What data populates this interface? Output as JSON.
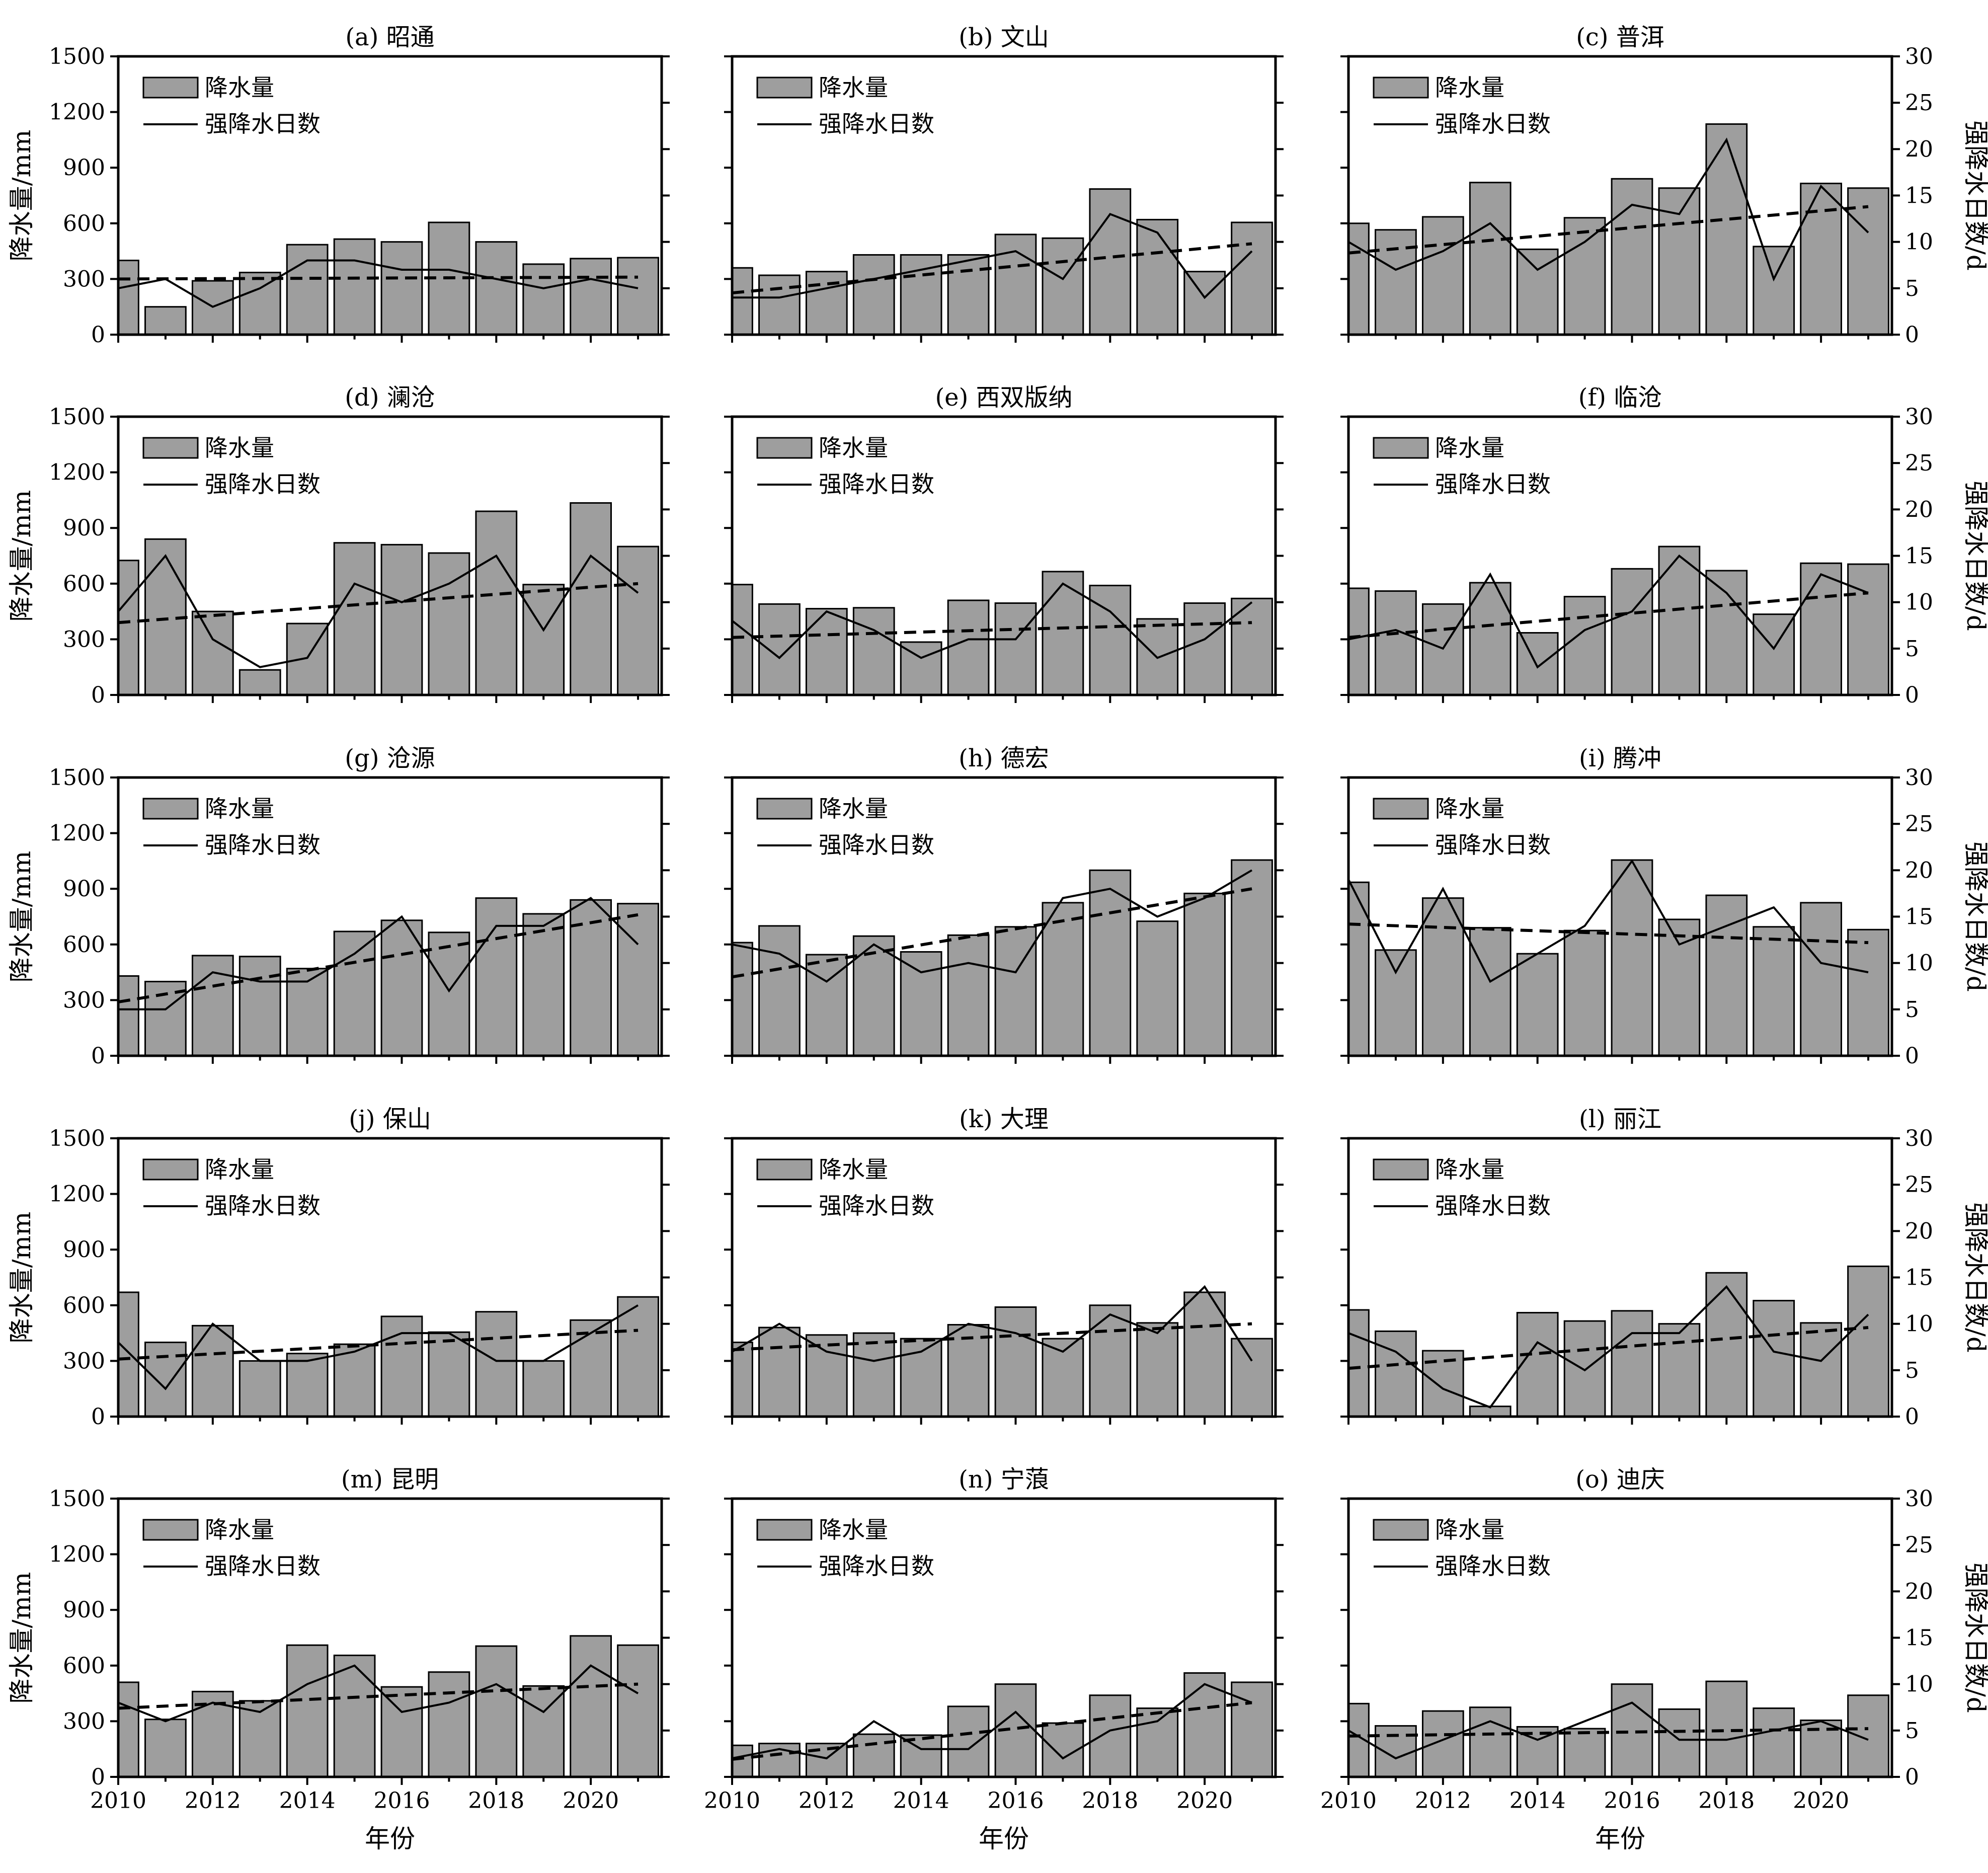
{
  "chart_data": {
    "type": "bar+line",
    "grid": false,
    "legend_position": "top-left",
    "legend": {
      "bar": "降水量",
      "line": "强降水日数"
    },
    "xlabel": "年份",
    "ylabel_left": "降水量/mm",
    "ylabel_right": "强降水日数/d",
    "years": [
      2010,
      2011,
      2012,
      2013,
      2014,
      2015,
      2016,
      2017,
      2018,
      2019,
      2020,
      2021
    ],
    "xlim": [
      2010,
      2021
    ],
    "xticks": [
      "2010",
      "2012",
      "2014",
      "2016",
      "2018",
      "2020"
    ],
    "ylim_left": [
      0,
      1500
    ],
    "yticks_left": [
      "0",
      "300",
      "600",
      "900",
      "1200",
      "1500"
    ],
    "ylim_right": [
      0,
      30
    ],
    "yticks_right": [
      "0",
      "5",
      "10",
      "15",
      "20",
      "25",
      "30"
    ],
    "panels": [
      {
        "title": "(a) 昭通",
        "precip": [
          400,
          150,
          290,
          335,
          485,
          515,
          500,
          605,
          500,
          380,
          410,
          415
        ],
        "days": [
          5,
          6,
          3,
          5,
          8,
          8,
          7,
          7,
          6,
          5,
          6,
          5
        ],
        "trend": [
          6,
          6.2
        ]
      },
      {
        "title": "(b) 文山",
        "precip": [
          360,
          320,
          340,
          430,
          430,
          430,
          540,
          520,
          785,
          620,
          340,
          605
        ],
        "days": [
          4,
          4,
          5,
          6,
          7,
          8,
          9,
          6,
          13,
          11,
          4,
          9
        ],
        "trend": [
          4.5,
          9.8
        ]
      },
      {
        "title": "(c) 普洱",
        "precip": [
          600,
          565,
          635,
          820,
          460,
          630,
          840,
          790,
          1135,
          475,
          815,
          790
        ],
        "days": [
          10,
          7,
          9,
          12,
          7,
          10,
          14,
          13,
          21,
          6,
          16,
          11
        ],
        "trend": [
          8.8,
          13.8
        ]
      },
      {
        "title": "(d) 澜沧",
        "precip": [
          725,
          840,
          450,
          135,
          385,
          820,
          810,
          765,
          990,
          595,
          1035,
          800
        ],
        "days": [
          9,
          15,
          6,
          3,
          4,
          12,
          10,
          12,
          15,
          7,
          15,
          11
        ],
        "trend": [
          7.8,
          12
        ]
      },
      {
        "title": "(e) 西双版纳",
        "precip": [
          595,
          490,
          465,
          470,
          285,
          510,
          495,
          665,
          590,
          410,
          495,
          520
        ],
        "days": [
          8,
          4,
          9,
          7,
          4,
          6,
          6,
          12,
          9,
          4,
          6,
          10
        ],
        "trend": [
          6.2,
          7.8
        ]
      },
      {
        "title": "(f) 临沧",
        "precip": [
          575,
          560,
          490,
          605,
          335,
          530,
          680,
          800,
          670,
          435,
          710,
          705
        ],
        "days": [
          6,
          7,
          5,
          13,
          3,
          7,
          9,
          15,
          11,
          5,
          13,
          11
        ],
        "trend": [
          6.2,
          11
        ]
      },
      {
        "title": "(g) 沧源",
        "precip": [
          430,
          400,
          540,
          535,
          470,
          670,
          730,
          665,
          850,
          765,
          840,
          820
        ],
        "days": [
          5,
          5,
          9,
          8,
          8,
          11,
          15,
          7,
          14,
          14,
          17,
          12
        ],
        "trend": [
          5.8,
          15.2
        ]
      },
      {
        "title": "(h) 德宏",
        "precip": [
          610,
          700,
          545,
          645,
          560,
          650,
          695,
          825,
          1000,
          725,
          875,
          1055
        ],
        "days": [
          12,
          11,
          8,
          12,
          9,
          10,
          9,
          17,
          18,
          15,
          17,
          20
        ],
        "trend": [
          8.5,
          18
        ]
      },
      {
        "title": "(i) 腾冲",
        "precip": [
          935,
          570,
          850,
          690,
          550,
          675,
          1055,
          735,
          865,
          695,
          825,
          680
        ],
        "days": [
          19,
          9,
          18,
          8,
          11,
          14,
          21,
          12,
          14,
          16,
          10,
          9
        ],
        "trend": [
          14.2,
          12.2
        ]
      },
      {
        "title": "(j) 保山",
        "precip": [
          670,
          400,
          490,
          300,
          340,
          390,
          540,
          455,
          565,
          300,
          520,
          645
        ],
        "days": [
          8,
          3,
          10,
          6,
          6,
          7,
          9,
          9,
          6,
          6,
          9,
          12
        ],
        "trend": [
          6.2,
          9.3
        ]
      },
      {
        "title": "(k) 大理",
        "precip": [
          400,
          480,
          440,
          450,
          420,
          495,
          590,
          420,
          600,
          505,
          670,
          420
        ],
        "days": [
          7,
          10,
          7,
          6,
          7,
          10,
          9,
          7,
          11,
          9,
          14,
          6
        ],
        "trend": [
          7.2,
          10
        ]
      },
      {
        "title": "(l) 丽江",
        "precip": [
          575,
          460,
          355,
          55,
          560,
          515,
          570,
          500,
          775,
          625,
          505,
          810
        ],
        "days": [
          9,
          7,
          3,
          1,
          8,
          5,
          9,
          9,
          14,
          7,
          6,
          11
        ],
        "trend": [
          5.2,
          9.6
        ]
      },
      {
        "title": "(m) 昆明",
        "precip": [
          510,
          310,
          460,
          410,
          710,
          655,
          485,
          565,
          705,
          490,
          760,
          710
        ],
        "days": [
          8,
          6,
          8,
          7,
          10,
          12,
          7,
          8,
          10,
          7,
          12,
          9
        ],
        "trend": [
          7.4,
          10
        ]
      },
      {
        "title": "(n) 宁蒗",
        "precip": [
          170,
          180,
          180,
          230,
          225,
          380,
          500,
          290,
          440,
          370,
          560,
          510
        ],
        "days": [
          2,
          3,
          2,
          6,
          3,
          3,
          7,
          2,
          5,
          6,
          10,
          8
        ],
        "trend": [
          1.9,
          8
        ]
      },
      {
        "title": "(o) 迪庆",
        "precip": [
          395,
          275,
          355,
          375,
          270,
          260,
          500,
          365,
          515,
          370,
          305,
          440
        ],
        "days": [
          5,
          2,
          4,
          6,
          4,
          6,
          8,
          4,
          4,
          5,
          6,
          4
        ],
        "trend": [
          4.4,
          5.2
        ]
      }
    ]
  }
}
